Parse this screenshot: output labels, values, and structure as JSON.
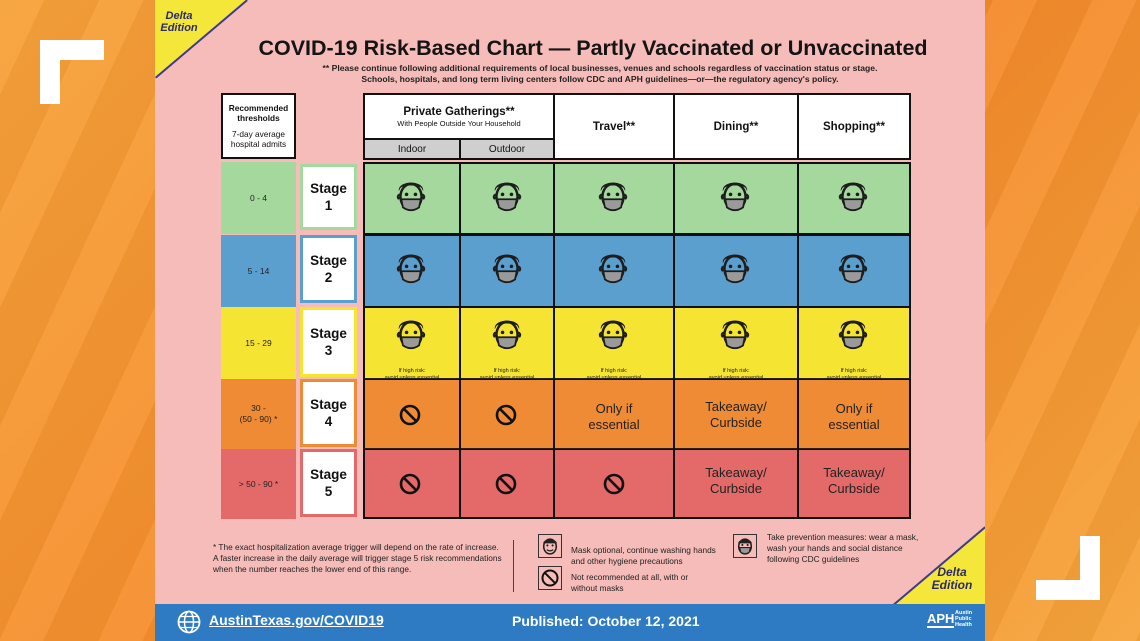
{
  "edition_label": "Delta Edition",
  "title": "COVID-19 Risk-Based Chart — Partly Vaccinated or Unvaccinated",
  "notes": [
    "** Please continue following additional requirements of local businesses, venues and schools regardless of vaccination status or stage.",
    "Schools, hospitals, and long term living centers follow CDC and APH guidelines—or—the regulatory agency's policy."
  ],
  "threshold_header": {
    "line1": "Recommended",
    "line2": "thresholds",
    "line3": "7-day average",
    "line4": "hospital admits"
  },
  "columns": {
    "gatherings": "Private Gatherings**",
    "gatherings_sub": "With People Outside Your Household",
    "indoor": "Indoor",
    "outdoor": "Outdoor",
    "travel": "Travel**",
    "dining": "Dining**",
    "shopping": "Shopping**"
  },
  "stages": [
    {
      "threshold": "0 - 4",
      "stage": "Stage",
      "num": "1",
      "color": "#a5d89d"
    },
    {
      "threshold": "5 - 14",
      "stage": "Stage",
      "num": "2",
      "color": "#5b9fcf"
    },
    {
      "threshold": "15 - 29",
      "stage": "Stage",
      "num": "3",
      "color": "#f6e433"
    },
    {
      "threshold_a": "30 -",
      "threshold_b": "(50 - 90) *",
      "stage": "Stage",
      "num": "4",
      "color": "#ef8b35"
    },
    {
      "threshold": "> 50 - 90 *",
      "stage": "Stage",
      "num": "5",
      "color": "#e46a6a"
    }
  ],
  "cells": {
    "high_risk_1": "If high risk:",
    "high_risk_2": "avoid unless essential",
    "only_if_1": "Only if",
    "only_if_2": "essential",
    "takeaway_1": "Takeaway/",
    "takeaway_2": "Curbside"
  },
  "footnote": "* The exact hospitalization average trigger will depend on the rate of increase. A faster increase in the daily average will trigger stage 5 risk recommendations when the number reaches the lower end of this range.",
  "legend": {
    "mask_optional": "Mask optional, continue washing hands and other hygiene precautions",
    "not_recommended": "Not recommended at all, with or without masks",
    "prevention": "Take prevention measures: wear a mask, wash your hands and social distance following CDC guidelines"
  },
  "footer": {
    "url": "AustinTexas.gov/COVID19",
    "published": "Published: October 12, 2021",
    "logo_text": "APH",
    "logo_sub": "Austin Public Health"
  },
  "icons": [
    "masked-face-icon",
    "unmasked-face-icon",
    "prohibited-icon",
    "globe-icon"
  ]
}
